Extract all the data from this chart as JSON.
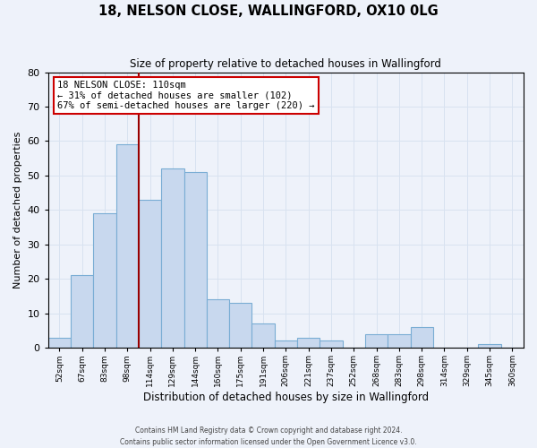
{
  "title1": "18, NELSON CLOSE, WALLINGFORD, OX10 0LG",
  "title2": "Size of property relative to detached houses in Wallingford",
  "xlabel": "Distribution of detached houses by size in Wallingford",
  "ylabel": "Number of detached properties",
  "bin_labels": [
    "52sqm",
    "67sqm",
    "83sqm",
    "98sqm",
    "114sqm",
    "129sqm",
    "144sqm",
    "160sqm",
    "175sqm",
    "191sqm",
    "206sqm",
    "221sqm",
    "237sqm",
    "252sqm",
    "268sqm",
    "283sqm",
    "298sqm",
    "314sqm",
    "329sqm",
    "345sqm",
    "360sqm"
  ],
  "bar_heights": [
    3,
    21,
    39,
    59,
    43,
    52,
    51,
    14,
    13,
    7,
    2,
    3,
    2,
    0,
    4,
    4,
    6,
    0,
    0,
    1,
    0
  ],
  "bar_color": "#c8d8ee",
  "bar_edge_color": "#7aadd4",
  "grid_color": "#d8e2f0",
  "background_color": "#eef2fa",
  "vline_x_bar_index": 4,
  "vline_color": "#990000",
  "ylim": [
    0,
    80
  ],
  "yticks": [
    0,
    10,
    20,
    30,
    40,
    50,
    60,
    70,
    80
  ],
  "annotation_title": "18 NELSON CLOSE: 110sqm",
  "annotation_line1": "← 31% of detached houses are smaller (102)",
  "annotation_line2": "67% of semi-detached houses are larger (220) →",
  "annotation_box_facecolor": "#ffffff",
  "annotation_box_edgecolor": "#cc0000",
  "footnote1": "Contains HM Land Registry data © Crown copyright and database right 2024.",
  "footnote2": "Contains public sector information licensed under the Open Government Licence v3.0."
}
